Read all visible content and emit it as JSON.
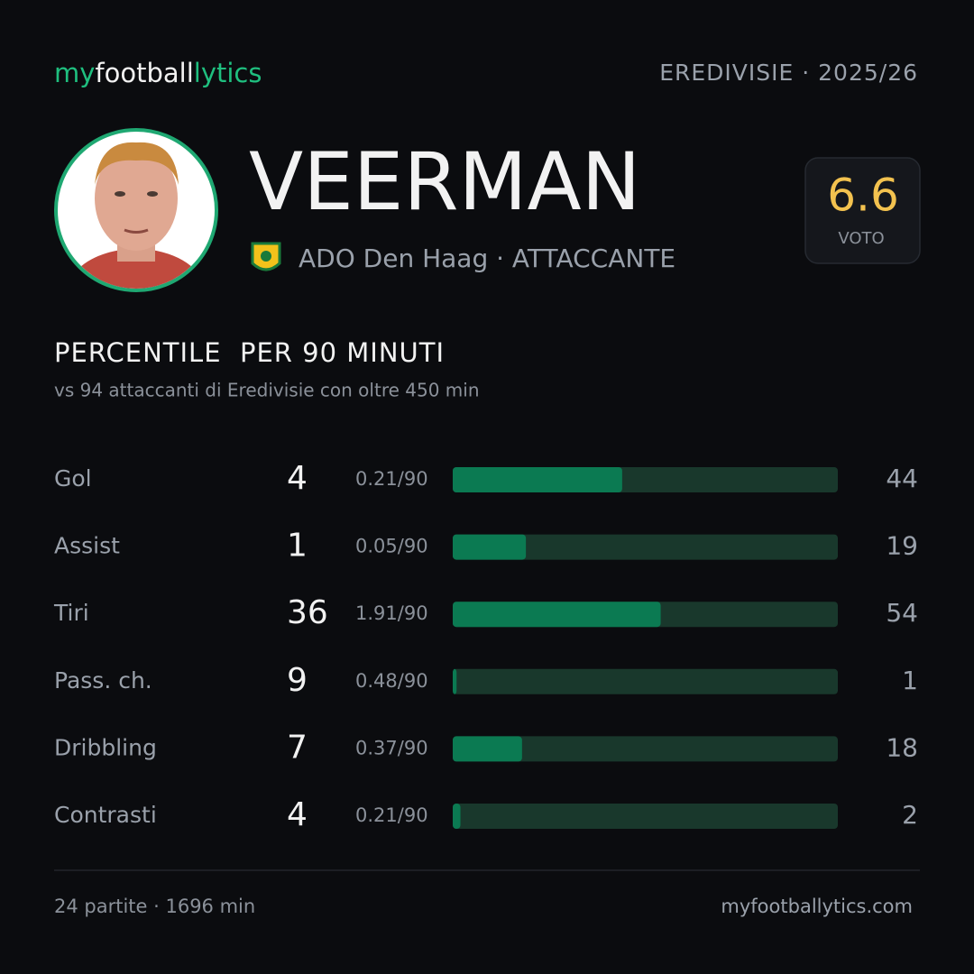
{
  "header": {
    "brand_parts": [
      "my",
      "football",
      "lytics"
    ],
    "league": "EREDIVISIE · 2025/26"
  },
  "player": {
    "name": "VEERMAN",
    "team_line": "ADO Den Haag · ATTACCANTE"
  },
  "rating": {
    "value": 6.6,
    "label": "VOTO"
  },
  "section": {
    "title": "PERCENTILE  PER 90 MINUTI",
    "subtitle": "vs 94 attaccanti di Eredivisie con oltre 450 min"
  },
  "percentile_range": [
    0,
    100
  ],
  "stats": [
    {
      "label": "Gol",
      "total": 4,
      "per90": "0.21/90",
      "percentile": 44
    },
    {
      "label": "Assist",
      "total": 1,
      "per90": "0.05/90",
      "percentile": 19
    },
    {
      "label": "Tiri",
      "total": 36,
      "per90": "1.91/90",
      "percentile": 54
    },
    {
      "label": "Pass. ch.",
      "total": 9,
      "per90": "0.48/90",
      "percentile": 1
    },
    {
      "label": "Dribbling",
      "total": 7,
      "per90": "0.37/90",
      "percentile": 18
    },
    {
      "label": "Contrasti",
      "total": 4,
      "per90": "0.21/90",
      "percentile": 2
    }
  ],
  "footer": {
    "summary": "24 partite · 1696 min",
    "site": "myfootballytics.com"
  }
}
